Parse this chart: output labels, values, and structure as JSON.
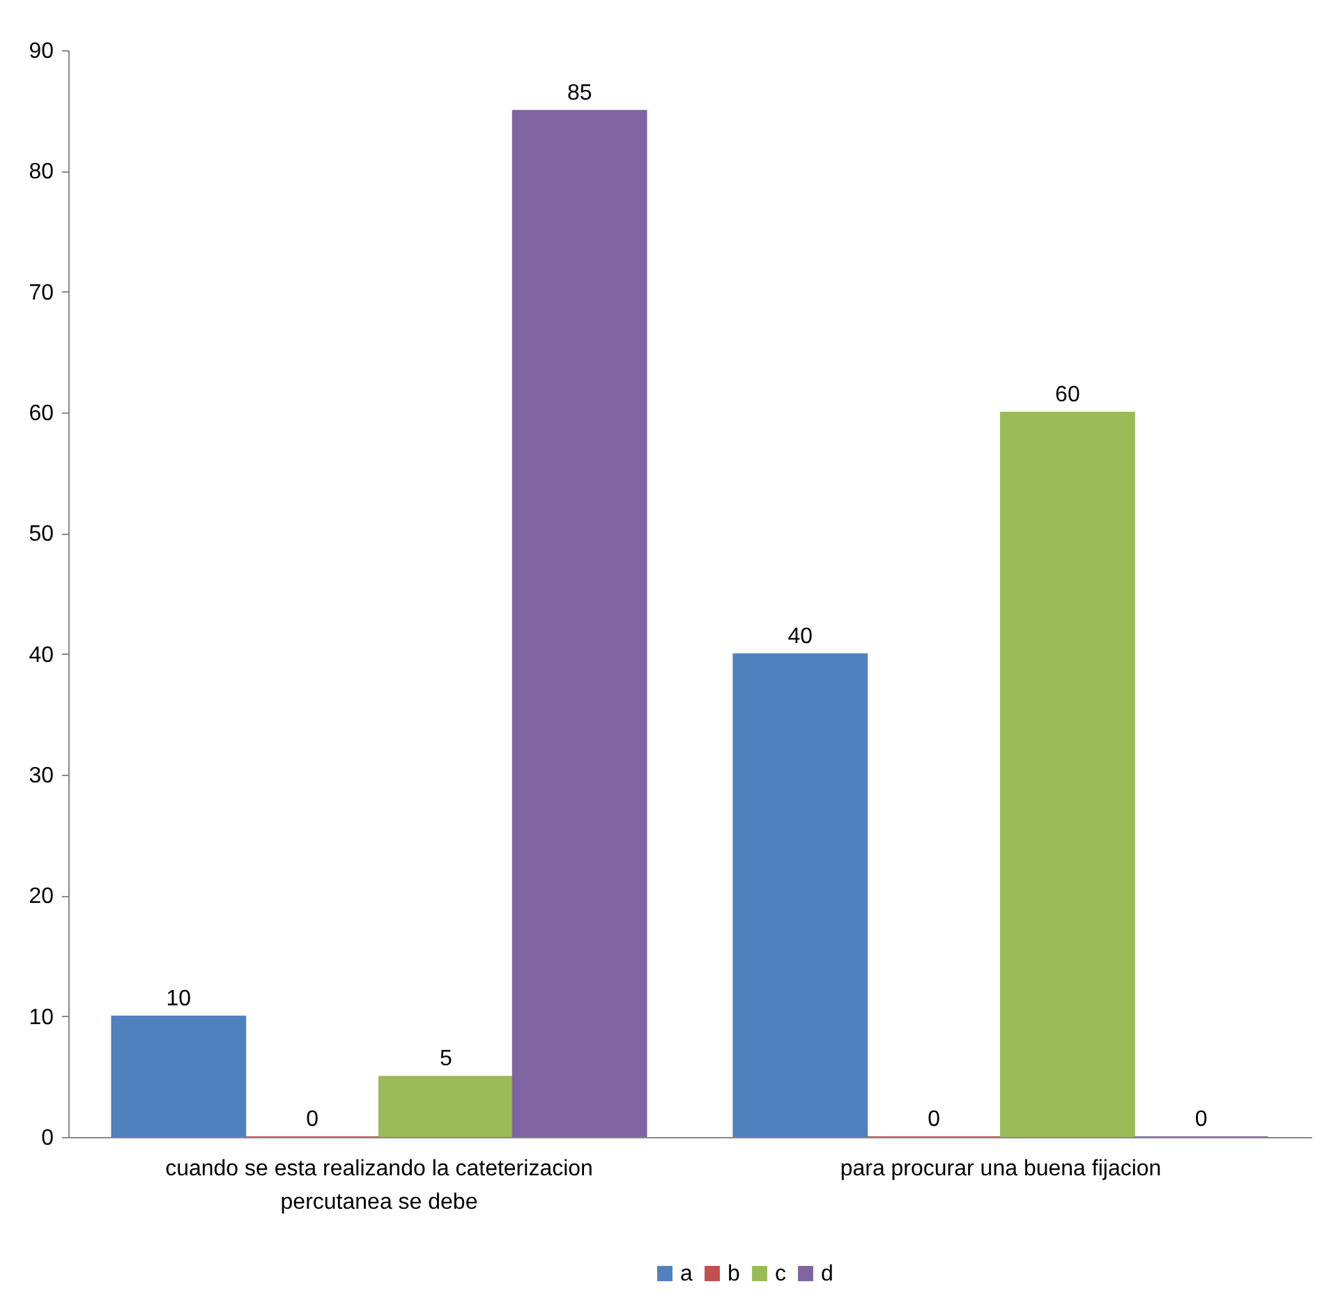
{
  "chart_data": {
    "type": "bar",
    "categories": [
      "cuando se esta realizando la cateterizacion percutanea se debe",
      "para procurar una buena fijacion"
    ],
    "series": [
      {
        "name": "a",
        "color": "#4f81bd",
        "values": [
          10,
          40
        ]
      },
      {
        "name": "b",
        "color": "#c0504d",
        "values": [
          0,
          0
        ]
      },
      {
        "name": "c",
        "color": "#9bbb59",
        "values": [
          5,
          60
        ]
      },
      {
        "name": "d",
        "color": "#8064a2",
        "values": [
          85,
          0
        ]
      }
    ],
    "ylim": [
      0,
      90
    ],
    "yticks": [
      0,
      10,
      20,
      30,
      40,
      50,
      60,
      70,
      80,
      90
    ],
    "grid": false,
    "legend": "bottom",
    "data_labels": true
  }
}
